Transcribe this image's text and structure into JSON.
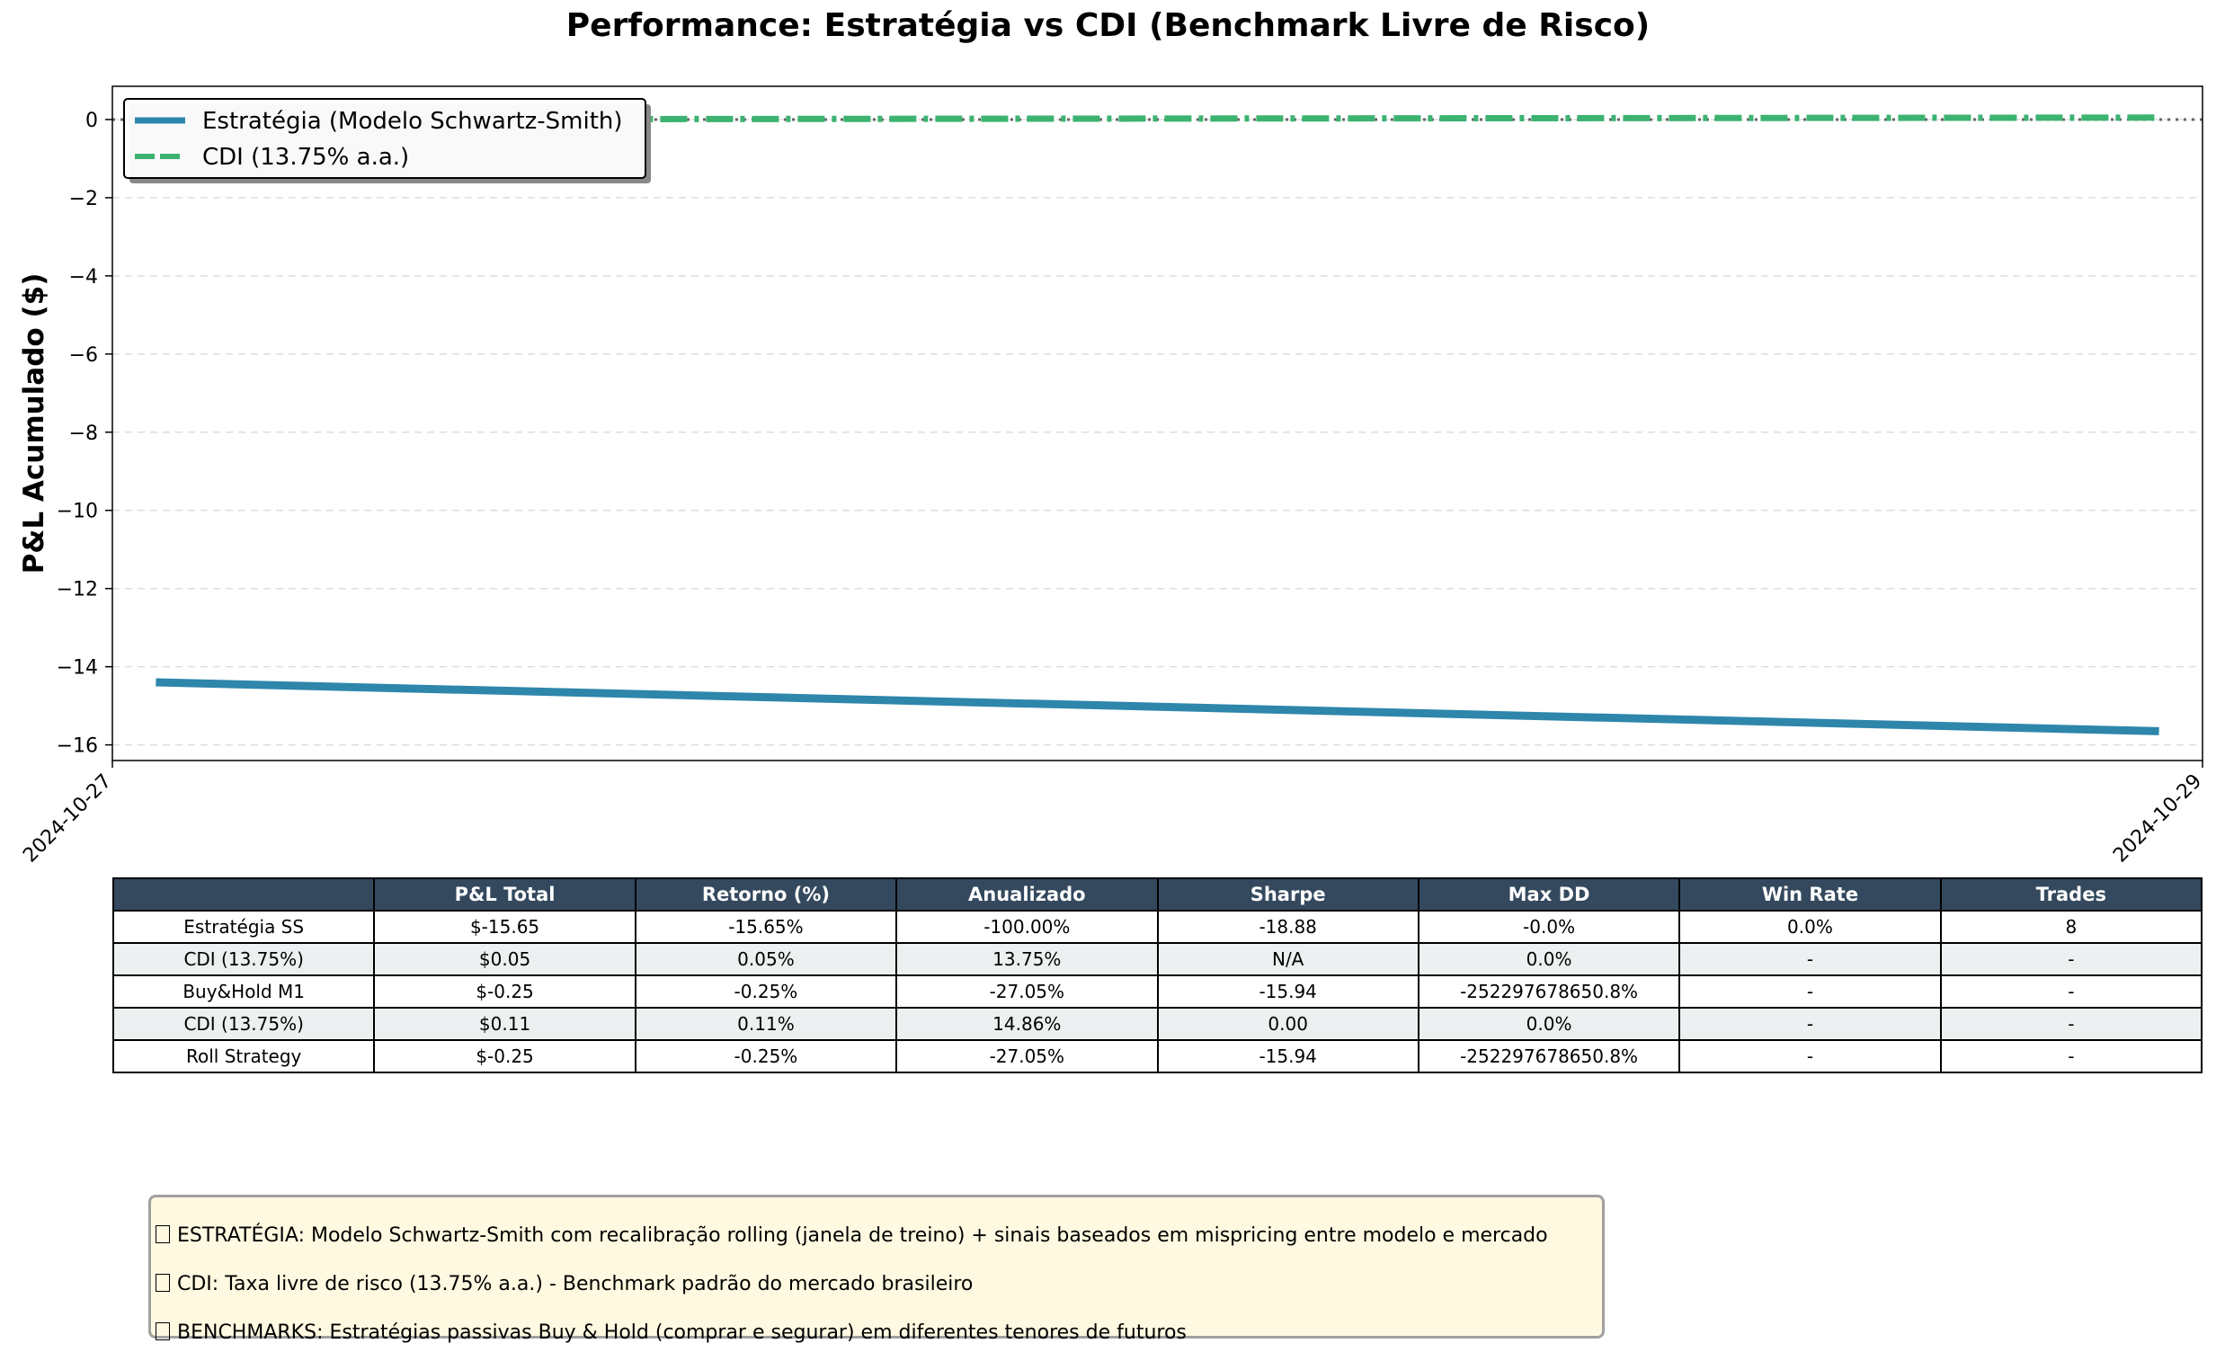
{
  "chart_data": {
    "type": "line",
    "title": "Performance: Estratégia vs CDI (Benchmark Livre de Risco)",
    "xlabel": "",
    "ylabel": "P&L Acumulado ($)",
    "x_tick_labels": [
      "2024-10-27",
      "2024-10-29"
    ],
    "xlim": [
      "2024-10-27",
      "2024-10-29"
    ],
    "ylim": [
      -16.4,
      0.85
    ],
    "yticks": [
      0,
      -2,
      -4,
      -6,
      -8,
      -10,
      -12,
      -14,
      -16
    ],
    "y_tick_labels": [
      "0",
      "−2",
      "−4",
      "−6",
      "−8",
      "−10",
      "−12",
      "−14",
      "−16"
    ],
    "grid": true,
    "legend_position": "top-left",
    "zero_reference_line": {
      "y": 0,
      "color": "#666666",
      "style": "dotted"
    },
    "series": [
      {
        "name": "Estratégia (Modelo Schwartz-Smith)",
        "color": "#2e86ab",
        "style": "solid",
        "x": [
          "2024-10-27 01:00",
          "2024-10-28 23:00"
        ],
        "y": [
          -14.4,
          -15.65
        ]
      },
      {
        "name": "CDI (13.75% a.a.)",
        "color": "#3cb371",
        "style": "dash-dot",
        "x": [
          "2024-10-27 01:00",
          "2024-10-28 23:00"
        ],
        "y": [
          0.0,
          0.05
        ]
      }
    ]
  },
  "table": {
    "columns": [
      "",
      "P&L Total",
      "Retorno (%)",
      "Anualizado",
      "Sharpe",
      "Max DD",
      "Win Rate",
      "Trades"
    ],
    "rows": [
      [
        "Estratégia SS",
        "$-15.65",
        "-15.65%",
        "-100.00%",
        "-18.88",
        "-0.0%",
        "0.0%",
        "8"
      ],
      [
        "CDI (13.75%)",
        "$0.05",
        "0.05%",
        "13.75%",
        "N/A",
        "0.0%",
        "-",
        "-"
      ],
      [
        "Buy&Hold M1",
        "$-0.25",
        "-0.25%",
        "-27.05%",
        "-15.94",
        "-252297678650.8%",
        "-",
        "-"
      ],
      [
        "CDI (13.75%)",
        "$0.11",
        "0.11%",
        "14.86%",
        "0.00",
        "0.0%",
        "-",
        "-"
      ],
      [
        "Roll Strategy",
        "$-0.25",
        "-0.25%",
        "-27.05%",
        "-15.94",
        "-252297678650.8%",
        "-",
        "-"
      ]
    ],
    "header_color": "#34495e",
    "stripe_color": "#ecf0f1"
  },
  "notes": {
    "background": "#fef9e0",
    "lines": [
      "ESTRATÉGIA: Modelo Schwartz-Smith com recalibração rolling (janela de treino) + sinais baseados em mispricing entre modelo e mercado",
      "CDI: Taxa livre de risco (13.75% a.a.) - Benchmark padrão do mercado brasileiro",
      "BENCHMARKS: Estratégias passivas Buy & Hold (comprar e segurar) em diferentes tenores de futuros"
    ]
  }
}
